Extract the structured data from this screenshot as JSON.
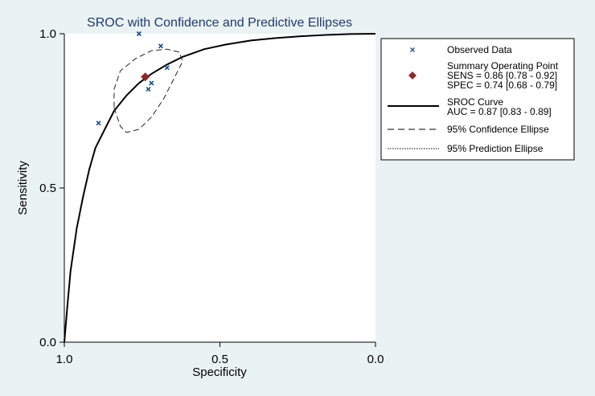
{
  "chart_data": {
    "type": "scatter",
    "title": "SROC with Confidence and Predictive Ellipses",
    "xlabel": "Specificity",
    "ylabel": "Sensitivity",
    "xlim": [
      1.0,
      0.0
    ],
    "ylim": [
      0.0,
      1.0
    ],
    "x_ticks": [
      "1.0",
      "0.5",
      "0.0"
    ],
    "y_ticks": [
      "0.0",
      "0.5",
      "1.0"
    ],
    "grid": false,
    "legend_position": "right",
    "observed": [
      {
        "spec": 0.76,
        "sens": 1.0
      },
      {
        "spec": 0.69,
        "sens": 0.96
      },
      {
        "spec": 0.67,
        "sens": 0.89
      },
      {
        "spec": 0.72,
        "sens": 0.84
      },
      {
        "spec": 0.73,
        "sens": 0.82
      },
      {
        "spec": 0.89,
        "sens": 0.71
      }
    ],
    "summary_point": {
      "spec": 0.74,
      "sens": 0.86
    },
    "sroc_curve": [
      {
        "spec": 1.0,
        "sens": 0.0
      },
      {
        "spec": 0.99,
        "sens": 0.12
      },
      {
        "spec": 0.98,
        "sens": 0.23
      },
      {
        "spec": 0.96,
        "sens": 0.37
      },
      {
        "spec": 0.94,
        "sens": 0.47
      },
      {
        "spec": 0.92,
        "sens": 0.56
      },
      {
        "spec": 0.9,
        "sens": 0.63
      },
      {
        "spec": 0.87,
        "sens": 0.69
      },
      {
        "spec": 0.84,
        "sens": 0.75
      },
      {
        "spec": 0.8,
        "sens": 0.8
      },
      {
        "spec": 0.76,
        "sens": 0.84
      },
      {
        "spec": 0.72,
        "sens": 0.87
      },
      {
        "spec": 0.67,
        "sens": 0.9
      },
      {
        "spec": 0.62,
        "sens": 0.925
      },
      {
        "spec": 0.55,
        "sens": 0.95
      },
      {
        "spec": 0.48,
        "sens": 0.965
      },
      {
        "spec": 0.4,
        "sens": 0.978
      },
      {
        "spec": 0.32,
        "sens": 0.986
      },
      {
        "spec": 0.24,
        "sens": 0.992
      },
      {
        "spec": 0.16,
        "sens": 0.996
      },
      {
        "spec": 0.08,
        "sens": 0.999
      },
      {
        "spec": 0.0,
        "sens": 1.0
      }
    ],
    "confidence_ellipse": [
      {
        "spec": 0.84,
        "sens": 0.76
      },
      {
        "spec": 0.82,
        "sens": 0.7
      },
      {
        "spec": 0.8,
        "sens": 0.68
      },
      {
        "spec": 0.76,
        "sens": 0.69
      },
      {
        "spec": 0.72,
        "sens": 0.73
      },
      {
        "spec": 0.68,
        "sens": 0.79
      },
      {
        "spec": 0.65,
        "sens": 0.85
      },
      {
        "spec": 0.62,
        "sens": 0.91
      },
      {
        "spec": 0.63,
        "sens": 0.94
      },
      {
        "spec": 0.67,
        "sens": 0.95
      },
      {
        "spec": 0.72,
        "sens": 0.945
      },
      {
        "spec": 0.77,
        "sens": 0.92
      },
      {
        "spec": 0.82,
        "sens": 0.88
      },
      {
        "spec": 0.84,
        "sens": 0.82
      }
    ],
    "legend": [
      {
        "key": "observed",
        "label": "Observed Data"
      },
      {
        "key": "summary",
        "label": "Summary Operating Point",
        "line2": "SENS = 0.86 [0.78 - 0.92]",
        "line3": "SPEC = 0.74 [0.68 - 0.79]"
      },
      {
        "key": "sroc",
        "label": "SROC Curve",
        "line2": "AUC = 0.87 [0.83 - 0.89]"
      },
      {
        "key": "conf",
        "label": "95% Confidence Ellipse"
      },
      {
        "key": "pred",
        "label": "95% Prediction Ellipse"
      }
    ],
    "colors": {
      "background": "#eaf2f3",
      "plot_bg": "#ffffff",
      "observed": "#1a4f8a",
      "summary": "#8b2a2a",
      "title": "#1f3a6e"
    }
  }
}
